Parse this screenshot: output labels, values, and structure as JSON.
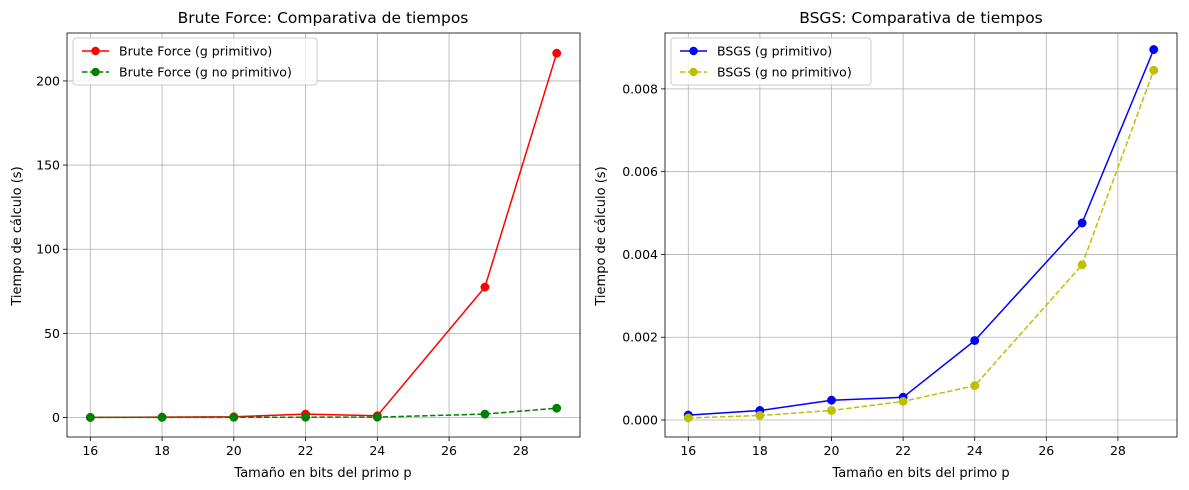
{
  "chart_data": [
    {
      "type": "line",
      "title": "Brute Force: Comparativa de tiempos",
      "xlabel": "Tamaño en bits del primo p",
      "ylabel": "Tiempo de cálculo (s)",
      "xlim": [
        15.35,
        29.65
      ],
      "ylim": [
        -11.6,
        228.5
      ],
      "x_ticks": [
        16,
        18,
        20,
        22,
        24,
        26,
        28
      ],
      "y_ticks": [
        0,
        50,
        100,
        150,
        200
      ],
      "y_tick_labels": [
        "0",
        "50",
        "100",
        "150",
        "200"
      ],
      "grid": true,
      "legend_position": "upper-left",
      "x": [
        16,
        18,
        20,
        22,
        24,
        27,
        29
      ],
      "series": [
        {
          "name": "Brute Force (g primitivo)",
          "color": "#ff0000",
          "linestyle": "solid",
          "values": [
            0.05,
            0.2,
            0.4,
            2.0,
            1.0,
            77.5,
            216.5
          ]
        },
        {
          "name": "Brute Force (g no primitivo)",
          "color": "#008000",
          "linestyle": "dashed",
          "values": [
            0.02,
            0.05,
            0.1,
            0.15,
            0.2,
            2.0,
            5.5
          ]
        }
      ]
    },
    {
      "type": "line",
      "title": "BSGS: Comparativa de tiempos",
      "xlabel": "Tamaño en bits del primo p",
      "ylabel": "Tiempo de cálculo (s)",
      "xlim": [
        15.35,
        29.65
      ],
      "ylim": [
        -0.00041,
        0.00935
      ],
      "x_ticks": [
        16,
        18,
        20,
        22,
        24,
        26,
        28
      ],
      "y_ticks": [
        0,
        0.002,
        0.004,
        0.006,
        0.008
      ],
      "y_tick_labels": [
        "0.000",
        "0.002",
        "0.004",
        "0.006",
        "0.008"
      ],
      "grid": true,
      "legend_position": "upper-left",
      "x": [
        16,
        18,
        20,
        22,
        24,
        27,
        29
      ],
      "series": [
        {
          "name": "BSGS (g primitivo)",
          "color": "#0000ff",
          "linestyle": "solid",
          "values": [
            0.00012,
            0.00023,
            0.00048,
            0.00055,
            0.00192,
            0.00476,
            0.00895
          ]
        },
        {
          "name": "BSGS (g no primitivo)",
          "color": "#bfbf00",
          "linestyle": "dashed",
          "values": [
            5e-05,
            0.00011,
            0.00023,
            0.00045,
            0.00083,
            0.00375,
            0.00845
          ]
        }
      ]
    }
  ]
}
